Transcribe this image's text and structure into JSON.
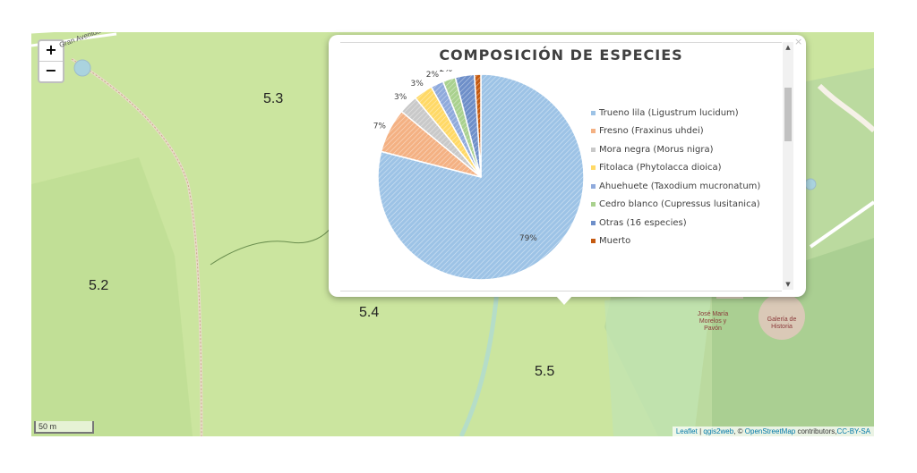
{
  "map": {
    "zoom_in_label": "+",
    "zoom_out_label": "−",
    "street_label": "Gran Avenida",
    "polygon_labels": [
      "5.3",
      "5.2",
      "5.4",
      "5.5"
    ],
    "poi_labels": [
      "José María Morelos y Pavón",
      "Galería de Historia"
    ],
    "scale_label": "50 m",
    "attribution": {
      "leaflet": "Leaflet",
      "sep1": " | ",
      "qgis2web": "qgis2web",
      "sep2": ", © ",
      "osm": "OpenStreetMap",
      "contributors": " contributors,",
      "license": "CC-BY-SA"
    },
    "colors": {
      "park": "#cbe59f",
      "forest": "#add19e",
      "path": "#f8f4f0"
    }
  },
  "popup": {
    "close_label": "×",
    "scroll_up": "▲",
    "scroll_down": "▼"
  },
  "chart_data": {
    "type": "pie",
    "title": "COMPOSICIÓN DE ESPECIES",
    "categories": [
      "Trueno lila (Ligustrum lucidum)",
      "Fresno (Fraxinus uhdei)",
      "Mora negra (Morus nigra)",
      "Fitolaca (Phytolacca dioica)",
      "Ahuehuete (Taxodium mucronatum)",
      "Cedro blanco  (Cupressus lusitanica)",
      "Otras (16 especies)",
      "Muerto"
    ],
    "values": [
      79,
      7,
      3,
      3,
      2,
      2,
      3,
      1
    ],
    "data_labels": [
      "79%",
      "7%",
      "3%",
      "3%",
      "2%",
      "2%",
      "3%",
      "1%"
    ],
    "colors": [
      "#9dc3e6",
      "#f4b183",
      "#c9c9c9",
      "#ffd966",
      "#8faadc",
      "#a9d18e",
      "#6e8fc9",
      "#c55a11"
    ],
    "legend_position": "right"
  }
}
